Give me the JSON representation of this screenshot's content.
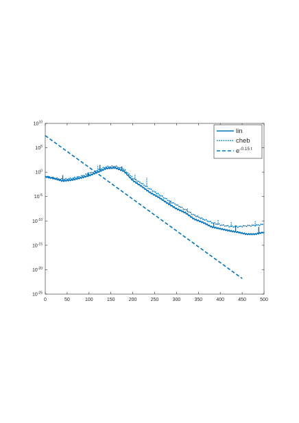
{
  "chart_data": {
    "type": "line",
    "title": "",
    "xlabel": "",
    "ylabel": "",
    "xlim": [
      0,
      500
    ],
    "ylim_log10": [
      -25,
      10
    ],
    "yscale": "log",
    "x_ticks": [
      0,
      50,
      100,
      150,
      200,
      250,
      300,
      350,
      400,
      450,
      500
    ],
    "y_tick_exponents": [
      10,
      5,
      0,
      -5,
      -10,
      -15,
      -20,
      -25
    ],
    "grid": false,
    "legend_position": "top-right",
    "color": "#0072BD",
    "series": [
      {
        "name": "lin",
        "style": "solid",
        "x": [
          0,
          20,
          40,
          60,
          80,
          100,
          120,
          140,
          160,
          180,
          200,
          220,
          240,
          260,
          280,
          300,
          320,
          340,
          360,
          380,
          400,
          420,
          440,
          460,
          480,
          500
        ],
        "log10_y": [
          -0.9,
          -1.3,
          -1.8,
          -1.6,
          -1.2,
          -0.7,
          0.0,
          0.8,
          0.9,
          0.2,
          -1.7,
          -2.9,
          -4.2,
          -5.2,
          -6.4,
          -7.5,
          -8.3,
          -9.6,
          -10.3,
          -11.2,
          -11.6,
          -12.0,
          -12.3,
          -12.7,
          -12.7,
          -12.3
        ],
        "spikes": [
          {
            "x": 40,
            "log10_y": -0.6
          },
          {
            "x": 98,
            "log10_y": 0.0
          },
          {
            "x": 125,
            "log10_y": 1.5
          },
          {
            "x": 175,
            "log10_y": 1.2
          },
          {
            "x": 285,
            "log10_y": -6.0
          },
          {
            "x": 385,
            "log10_y": -10.5
          },
          {
            "x": 435,
            "log10_y": -10.9
          },
          {
            "x": 488,
            "log10_y": -11.2
          }
        ]
      },
      {
        "name": "cheb",
        "style": "dotted",
        "x": [
          0,
          20,
          40,
          60,
          80,
          100,
          120,
          140,
          160,
          180,
          200,
          220,
          240,
          260,
          280,
          300,
          320,
          340,
          360,
          380,
          400,
          420,
          440,
          460,
          480,
          500
        ],
        "log10_y": [
          -0.9,
          -1.2,
          -1.5,
          -1.3,
          -0.9,
          -0.3,
          0.4,
          1.1,
          1.2,
          0.6,
          -1.2,
          -2.3,
          -3.5,
          -4.6,
          -5.7,
          -6.7,
          -7.7,
          -8.8,
          -9.6,
          -10.3,
          -10.8,
          -11.1,
          -11.2,
          -11.0,
          -10.9,
          -10.7
        ],
        "spikes": [
          {
            "x": 120,
            "log10_y": 1.4
          },
          {
            "x": 205,
            "log10_y": -0.4
          },
          {
            "x": 232,
            "log10_y": -1.2
          },
          {
            "x": 325,
            "log10_y": -7.4
          },
          {
            "x": 395,
            "log10_y": -9.7
          },
          {
            "x": 425,
            "log10_y": -10.1
          },
          {
            "x": 480,
            "log10_y": -10.0
          }
        ]
      },
      {
        "name": "e^{-0.15 t}",
        "style": "dashed",
        "x": [
          0,
          450
        ],
        "log10_y": [
          7.5,
          -21.8
        ]
      }
    ]
  },
  "legend": {
    "entries": [
      {
        "name": "lin",
        "style": "solid"
      },
      {
        "name": "cheb",
        "style": "dotted"
      },
      {
        "base": "e",
        "sup": "-0.15 t",
        "style": "dashed"
      }
    ]
  }
}
